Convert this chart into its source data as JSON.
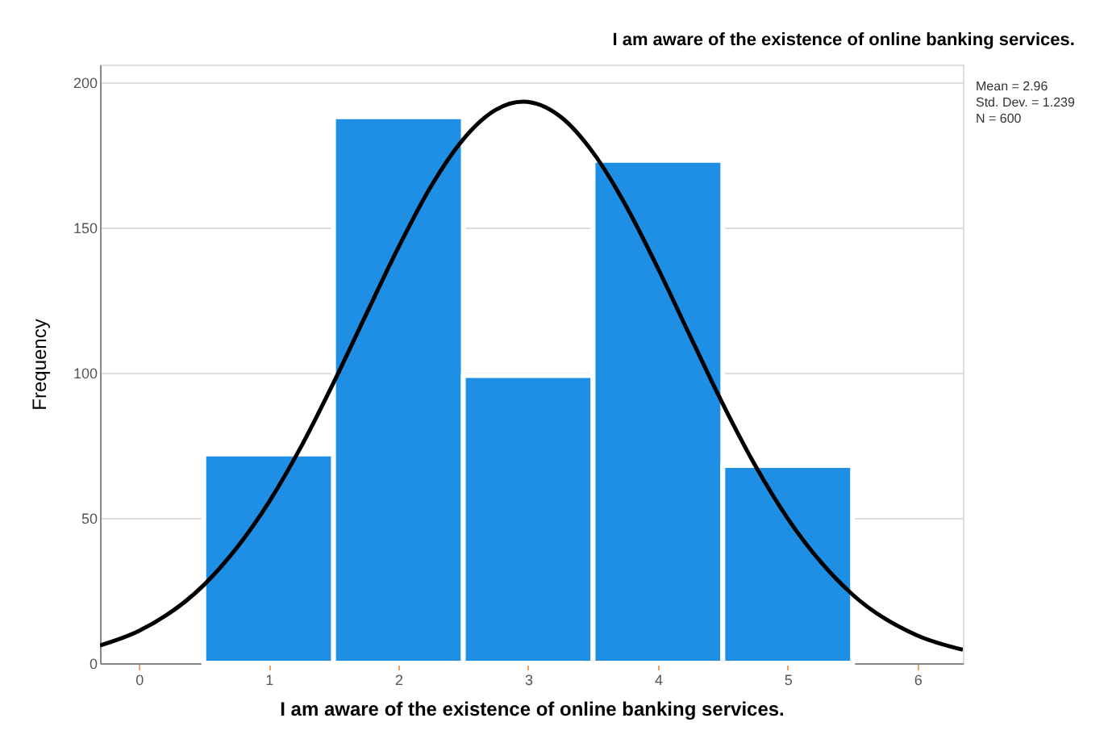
{
  "chart_data": {
    "type": "histogram",
    "title": "I am aware of the existence of online banking services.",
    "xlabel": "I am aware of the existence of online banking services.",
    "ylabel": "Frequency",
    "bins": [
      0.5,
      1.5,
      2.5,
      3.5,
      4.5,
      5.5
    ],
    "values": [
      72,
      188,
      99,
      173,
      68
    ],
    "color": "#1f8fe5",
    "series": [
      {
        "type": "line",
        "color": "#000000",
        "x": [
          -0.3,
          0,
          0.5,
          1,
          1.25,
          1.5,
          1.75,
          2,
          2.25,
          2.5,
          2.75,
          2.96,
          3.25,
          3.5,
          3.75,
          4,
          4.25,
          4.5,
          4.75,
          5,
          5.5,
          6,
          6.35
        ],
        "values": [
          6.1,
          11.1,
          26.9,
          55.3,
          74.5,
          96.5,
          119.9,
          143.1,
          164.0,
          180.3,
          190.4,
          193.2,
          188.0,
          175.7,
          157.7,
          135.9,
          112.4,
          89.2,
          68.0,
          49.8,
          23.6,
          9.5,
          4.6
        ]
      }
    ],
    "xlim": [
      -0.3,
      6.35
    ],
    "xticks": [
      0,
      1,
      2,
      3,
      4,
      5,
      6
    ],
    "ylim": [
      0,
      206
    ],
    "yticks": [
      0,
      50,
      100,
      150,
      200
    ],
    "grid": "y",
    "annotations": [
      "Mean = 2.96",
      "Std. Dev. = 1.239",
      "N = 600"
    ]
  }
}
